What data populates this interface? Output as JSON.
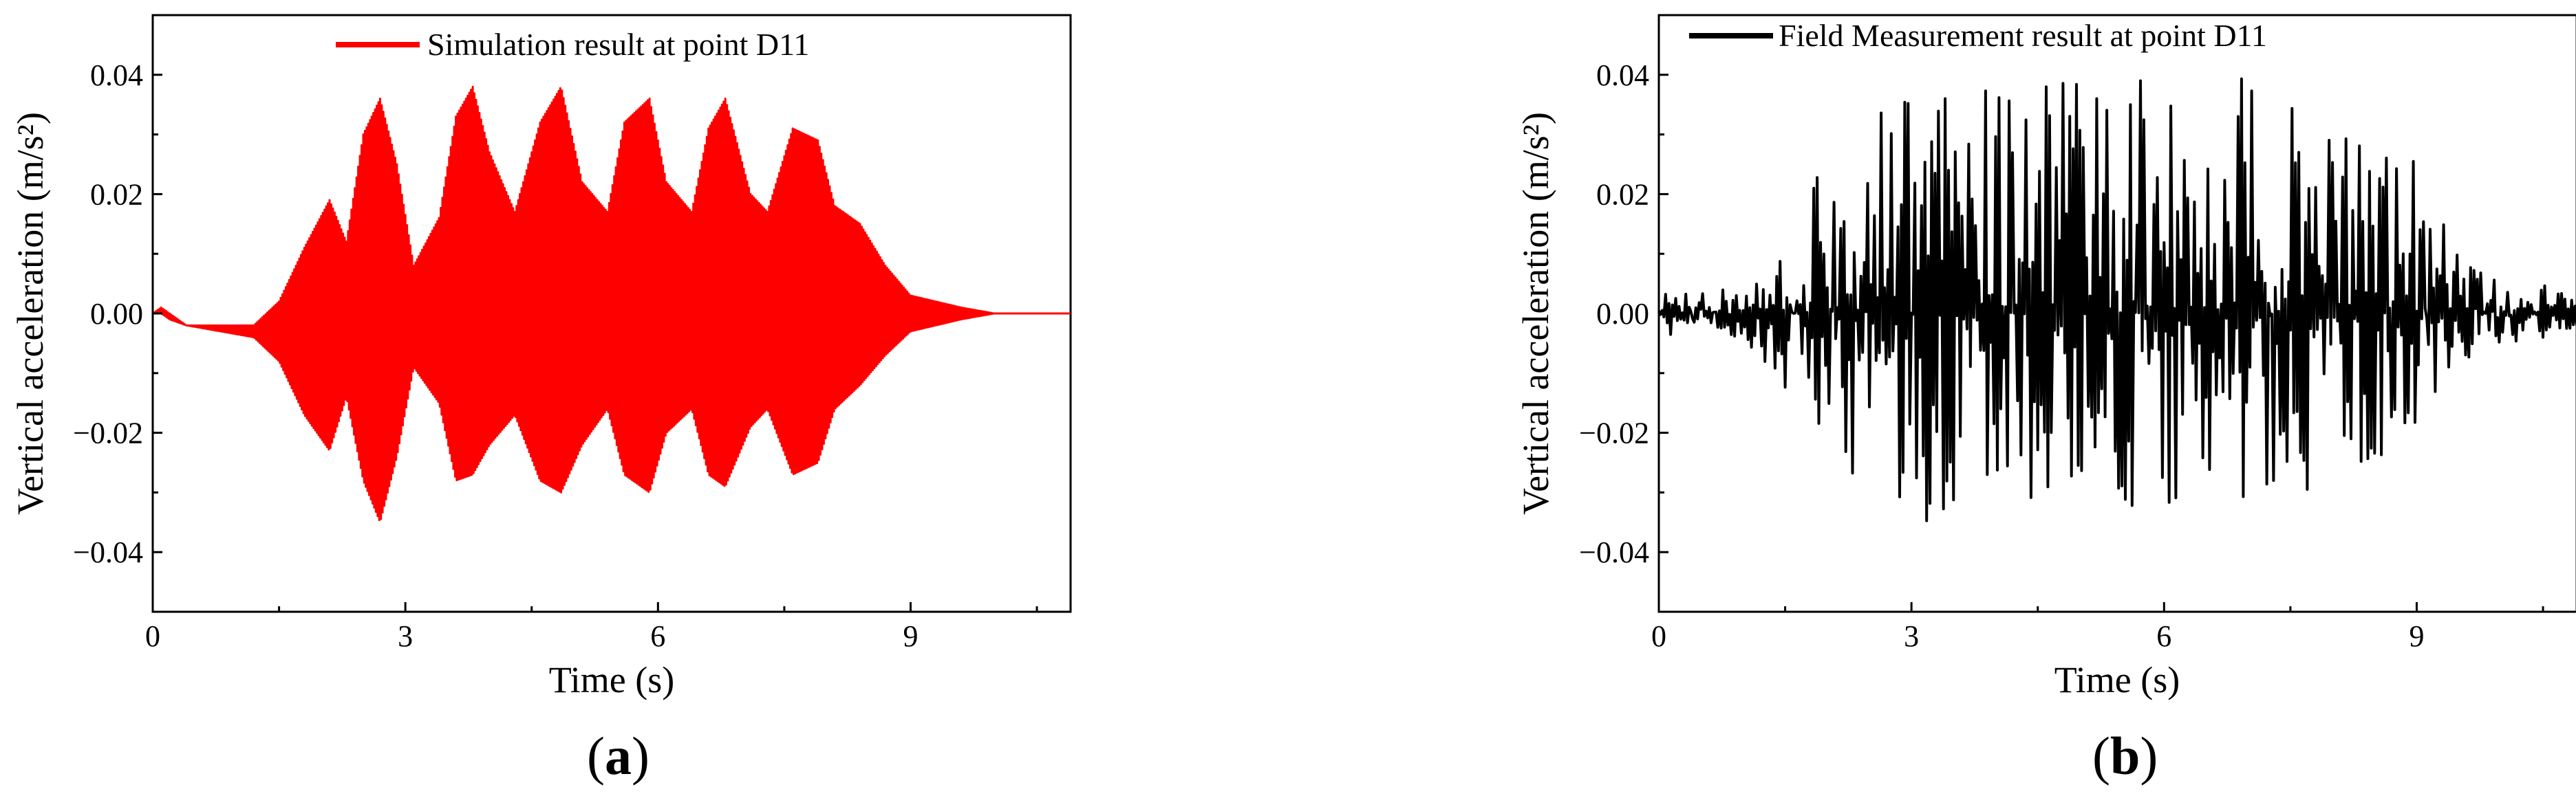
{
  "figure": {
    "panels": [
      {
        "label_open": "(",
        "label_letter": "a",
        "label_close": ")"
      },
      {
        "label_open": "(",
        "label_letter": "b",
        "label_close": ")"
      }
    ]
  },
  "chart_data": [
    {
      "type": "line",
      "title": "",
      "xlabel": "Time (s)",
      "ylabel": "Vertical acceleration (m/s²)",
      "xlim": [
        0,
        10.9
      ],
      "ylim": [
        -0.05,
        0.05
      ],
      "xticks": [
        0,
        3,
        6,
        9
      ],
      "xtick_labels": [
        "0",
        "3",
        "6",
        "9"
      ],
      "yticks": [
        -0.04,
        -0.02,
        0.0,
        0.02,
        0.04
      ],
      "ytick_labels": [
        "−0.04",
        "−0.02",
        "0.00",
        "0.02",
        "0.04"
      ],
      "legend_position": "top-center",
      "series": [
        {
          "name": "Simulation result at point D11",
          "color": "#ff0000",
          "kind": "oscillation-envelope",
          "sample_step": 0.01,
          "envelope": {
            "t": [
              0.0,
              0.1,
              0.2,
              0.4,
              0.8,
              1.2,
              1.5,
              1.8,
              2.1,
              2.3,
              2.5,
              2.7,
              2.9,
              3.1,
              3.4,
              3.6,
              3.8,
              4.0,
              4.3,
              4.6,
              4.85,
              5.1,
              5.4,
              5.6,
              5.9,
              6.1,
              6.4,
              6.6,
              6.8,
              7.1,
              7.3,
              7.6,
              7.9,
              8.1,
              8.4,
              8.7,
              9.0,
              9.3,
              9.6,
              10.0,
              10.5,
              10.9
            ],
            "upper": [
              0.0,
              0.001,
              0.0,
              -0.002,
              -0.002,
              -0.002,
              0.002,
              0.011,
              0.019,
              0.012,
              0.03,
              0.036,
              0.025,
              0.008,
              0.016,
              0.033,
              0.038,
              0.027,
              0.017,
              0.032,
              0.038,
              0.022,
              0.017,
              0.032,
              0.036,
              0.022,
              0.017,
              0.031,
              0.036,
              0.02,
              0.017,
              0.031,
              0.029,
              0.018,
              0.015,
              0.008,
              0.003,
              0.002,
              0.001,
              0.0,
              0.0,
              0.0
            ],
            "lower": [
              0.0,
              0.0,
              -0.001,
              -0.002,
              -0.003,
              -0.004,
              -0.008,
              -0.017,
              -0.023,
              -0.014,
              -0.028,
              -0.035,
              -0.024,
              -0.009,
              -0.015,
              -0.028,
              -0.027,
              -0.022,
              -0.017,
              -0.028,
              -0.03,
              -0.022,
              -0.016,
              -0.027,
              -0.03,
              -0.02,
              -0.016,
              -0.027,
              -0.029,
              -0.019,
              -0.016,
              -0.027,
              -0.025,
              -0.016,
              -0.012,
              -0.007,
              -0.003,
              -0.002,
              -0.001,
              0.0,
              0.0,
              0.0
            ]
          }
        }
      ]
    },
    {
      "type": "line",
      "title": "",
      "xlabel": "Time (s)",
      "ylabel": "Vertical acceleration (m/s²)",
      "xlim": [
        0,
        10.9
      ],
      "ylim": [
        -0.05,
        0.05
      ],
      "xticks": [
        0,
        3,
        6,
        9
      ],
      "xtick_labels": [
        "0",
        "3",
        "6",
        "9"
      ],
      "yticks": [
        -0.04,
        -0.02,
        0.0,
        0.02,
        0.04
      ],
      "ytick_labels": [
        "−0.04",
        "−0.02",
        "0.00",
        "0.02",
        "0.04"
      ],
      "legend_position": "top-center",
      "series": [
        {
          "name": "Field Measurement result at point D11",
          "color": "#000000",
          "kind": "noisy-envelope",
          "sample_step": 0.02,
          "envelope": {
            "t": [
              0.0,
              0.5,
              1.0,
              1.3,
              1.6,
              2.0,
              2.4,
              2.8,
              3.2,
              3.6,
              4.0,
              4.4,
              4.8,
              5.2,
              5.6,
              5.9,
              6.2,
              6.5,
              6.9,
              7.3,
              7.7,
              8.1,
              8.5,
              8.9,
              9.3,
              9.6,
              10.0,
              10.5,
              10.9
            ],
            "upper": [
              0.003,
              0.003,
              0.003,
              0.008,
              0.012,
              0.027,
              0.03,
              0.036,
              0.034,
              0.038,
              0.037,
              0.036,
              0.04,
              0.036,
              0.035,
              0.045,
              0.038,
              0.036,
              0.044,
              0.036,
              0.033,
              0.031,
              0.031,
              0.027,
              0.017,
              0.008,
              0.005,
              0.005,
              0.003
            ],
            "lower": [
              -0.003,
              -0.003,
              -0.004,
              -0.009,
              -0.013,
              -0.023,
              -0.028,
              -0.03,
              -0.035,
              -0.03,
              -0.026,
              -0.031,
              -0.028,
              -0.025,
              -0.033,
              -0.029,
              -0.034,
              -0.026,
              -0.031,
              -0.028,
              -0.029,
              -0.026,
              -0.024,
              -0.021,
              -0.015,
              -0.007,
              -0.005,
              -0.004,
              -0.003
            ]
          }
        }
      ]
    }
  ]
}
